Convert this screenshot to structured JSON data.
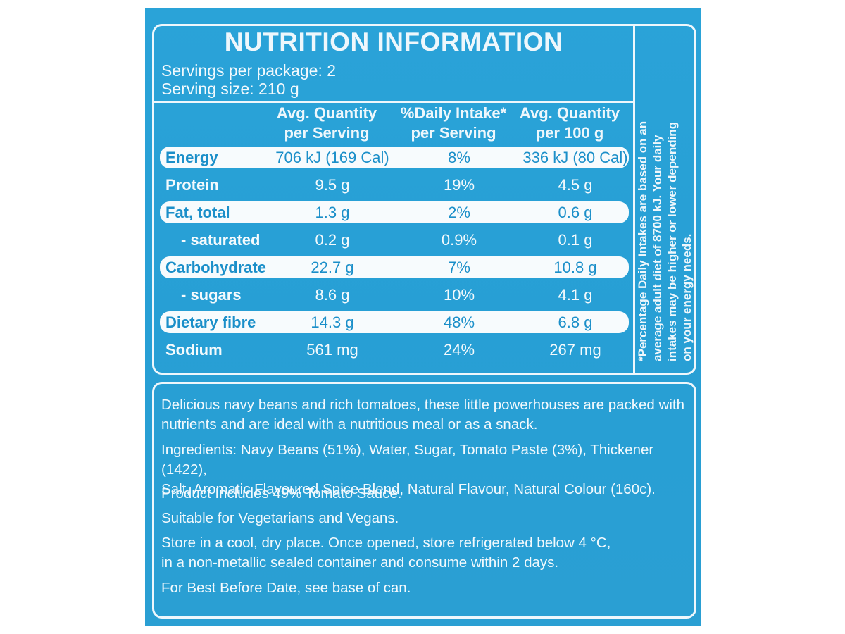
{
  "title": "NUTRITION INFORMATION",
  "servings_per_package": "Servings per package: 2",
  "serving_size": "Serving size: 210 g",
  "headers": {
    "col1_line1": "Avg. Quantity",
    "col1_line2": "per Serving",
    "col2_line1": "%Daily Intake*",
    "col2_line2": "per Serving",
    "col3_line1": "Avg. Quantity",
    "col3_line2": "per 100 g"
  },
  "rows": [
    {
      "name": "Energy",
      "serving": "706 kJ (169 Cal)",
      "daily": "8%",
      "per100": "336 kJ (80 Cal)"
    },
    {
      "name": "Protein",
      "serving": "9.5 g",
      "daily": "19%",
      "per100": "4.5 g"
    },
    {
      "name": "Fat, total",
      "serving": "1.3 g",
      "daily": "2%",
      "per100": "0.6 g"
    },
    {
      "name": "- saturated",
      "serving": "0.2 g",
      "daily": "0.9%",
      "per100": "0.1 g"
    },
    {
      "name": "Carbohydrate",
      "serving": "22.7 g",
      "daily": "7%",
      "per100": "10.8 g"
    },
    {
      "name": "- sugars",
      "serving": "8.6 g",
      "daily": "10%",
      "per100": "4.1 g"
    },
    {
      "name": "Dietary fibre",
      "serving": "14.3 g",
      "daily": "48%",
      "per100": "6.8 g"
    },
    {
      "name": "Sodium",
      "serving": "561 mg",
      "daily": "24%",
      "per100": "267 mg"
    }
  ],
  "footnote": {
    "line1": "*Percentage Daily Intakes are based on an",
    "line2": "average adult diet of 8700 kJ. Your daily",
    "line3": "intakes may be higher or lower depending",
    "line4": "on your energy needs."
  },
  "description": {
    "line1": "Delicious navy beans and rich tomatoes, these little powerhouses are packed with",
    "line2": "nutrients and are ideal with a nutritious meal or as a snack."
  },
  "ingredients": {
    "line1": "Ingredients: Navy Beans (51%), Water, Sugar, Tomato Paste (3%), Thickener (1422),",
    "line2": "Salt, Aromatic Flavoured Spice Blend, Natural Flavour, Natural Colour (160c)."
  },
  "product_includes": "Product Includes 49% Tomato Sauce.",
  "suitable": "Suitable for Vegetarians and Vegans.",
  "storage": {
    "line1": "Store in a cool, dry place. Once opened, store refrigerated below 4 °C,",
    "line2": "in a non-metallic sealed container and consume within 2 days."
  },
  "best_before": "For Best Before Date, see base of can."
}
